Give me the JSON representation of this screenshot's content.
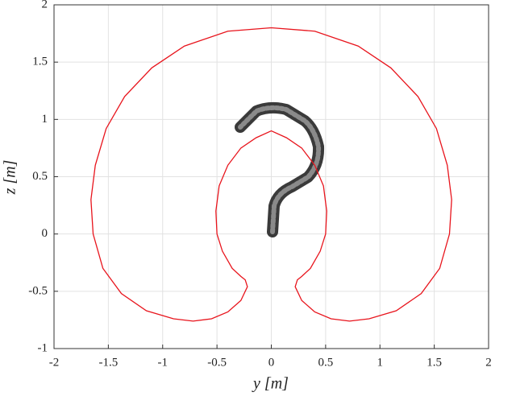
{
  "chart_data": {
    "type": "line",
    "xlabel": "y [m]",
    "ylabel": "z [m]",
    "x": [
      0,
      0.4,
      0.8,
      1.1,
      1.35,
      1.52,
      1.62,
      1.66,
      1.64,
      1.55,
      1.38,
      1.15,
      0.9,
      0.72,
      0.55,
      0.4,
      0.28,
      0.22,
      0.24,
      0.28,
      0.36,
      0.45,
      0.5,
      0.51,
      0.48,
      0.4,
      0.28,
      0.14,
      0,
      -0.14,
      -0.28,
      -0.4,
      -0.48,
      -0.51,
      -0.5,
      -0.45,
      -0.36,
      -0.28,
      -0.24,
      -0.22,
      -0.28,
      -0.4,
      -0.55,
      -0.72,
      -0.9,
      -1.15,
      -1.38,
      -1.55,
      -1.64,
      -1.66,
      -1.62,
      -1.52,
      -1.35,
      -1.1,
      -0.8,
      -0.4,
      0
    ],
    "series": [
      {
        "color": "#e8141c",
        "values": [
          1.8,
          1.77,
          1.64,
          1.45,
          1.2,
          0.92,
          0.6,
          0.3,
          0,
          -0.3,
          -0.52,
          -0.67,
          -0.74,
          -0.76,
          -0.74,
          -0.68,
          -0.58,
          -0.46,
          -0.4,
          -0.37,
          -0.3,
          -0.15,
          0,
          0.2,
          0.42,
          0.6,
          0.75,
          0.84,
          0.9,
          0.84,
          0.75,
          0.6,
          0.42,
          0.2,
          0,
          -0.15,
          -0.3,
          -0.37,
          -0.4,
          -0.46,
          -0.58,
          -0.68,
          -0.74,
          -0.76,
          -0.74,
          -0.67,
          -0.52,
          -0.3,
          0,
          0.3,
          0.6,
          0.92,
          1.2,
          1.45,
          1.64,
          1.77,
          1.8
        ]
      }
    ],
    "xlim": [
      -2,
      2
    ],
    "xticks": [
      -2,
      -1.5,
      -1,
      -0.5,
      0,
      0.5,
      1,
      1.5,
      2
    ],
    "ylim": [
      -1,
      2
    ],
    "yticks": [
      -1,
      -0.5,
      0,
      0.5,
      1,
      1.5,
      2
    ],
    "grid": true
  }
}
